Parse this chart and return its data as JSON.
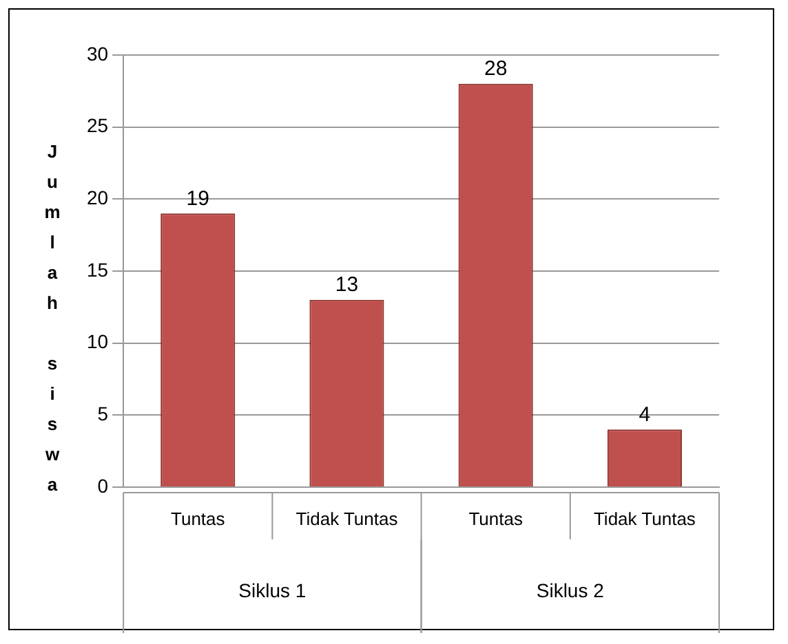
{
  "chart_data": {
    "type": "bar",
    "ylabel": "Jumlah siswa",
    "categories": [
      "Tuntas",
      "Tidak Tuntas",
      "Tuntas",
      "Tidak Tuntas"
    ],
    "values": [
      19,
      13,
      28,
      4
    ],
    "color": "#c0504d",
    "ylim": [
      0,
      30
    ],
    "yticks": [
      0,
      5,
      10,
      15,
      20,
      25,
      30
    ],
    "grid": "y",
    "data_labels": true,
    "legend": false,
    "annotations": [
      "Siklus 1",
      "Siklus 2"
    ]
  }
}
